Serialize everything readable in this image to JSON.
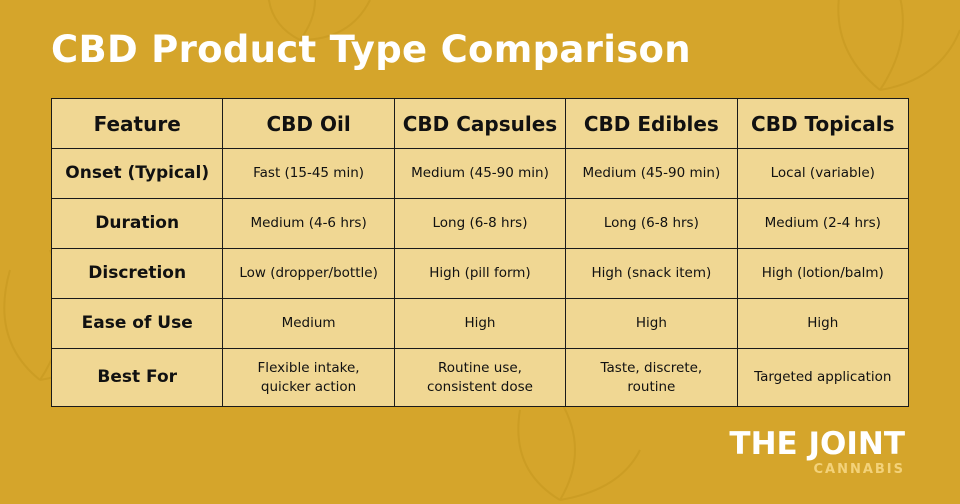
{
  "title": "CBD Product Type Comparison",
  "table": {
    "header": [
      "Feature",
      "CBD Oil",
      "CBD Capsules",
      "CBD Edibles",
      "CBD Topicals"
    ],
    "rows": [
      [
        "Onset (Typical)",
        "Fast (15-45 min)",
        "Medium (45-90 min)",
        "Medium (45-90 min)",
        "Local (variable)"
      ],
      [
        "Duration",
        "Medium (4-6 hrs)",
        "Long (6-8 hrs)",
        "Long (6-8 hrs)",
        "Medium (2-4 hrs)"
      ],
      [
        "Discretion",
        "Low (dropper/bottle)",
        "High (pill form)",
        "High (snack item)",
        "High (lotion/balm)"
      ],
      [
        "Ease of Use",
        "Medium",
        "High",
        "High",
        "High"
      ],
      [
        "Best For",
        [
          "Flexible intake,",
          "quicker action"
        ],
        [
          "Routine use,",
          "consistent dose"
        ],
        [
          "Taste, discrete,",
          "routine"
        ],
        "Targeted application"
      ]
    ]
  },
  "logo": {
    "name": "THE JOINT",
    "sub": "CANNABIS"
  }
}
